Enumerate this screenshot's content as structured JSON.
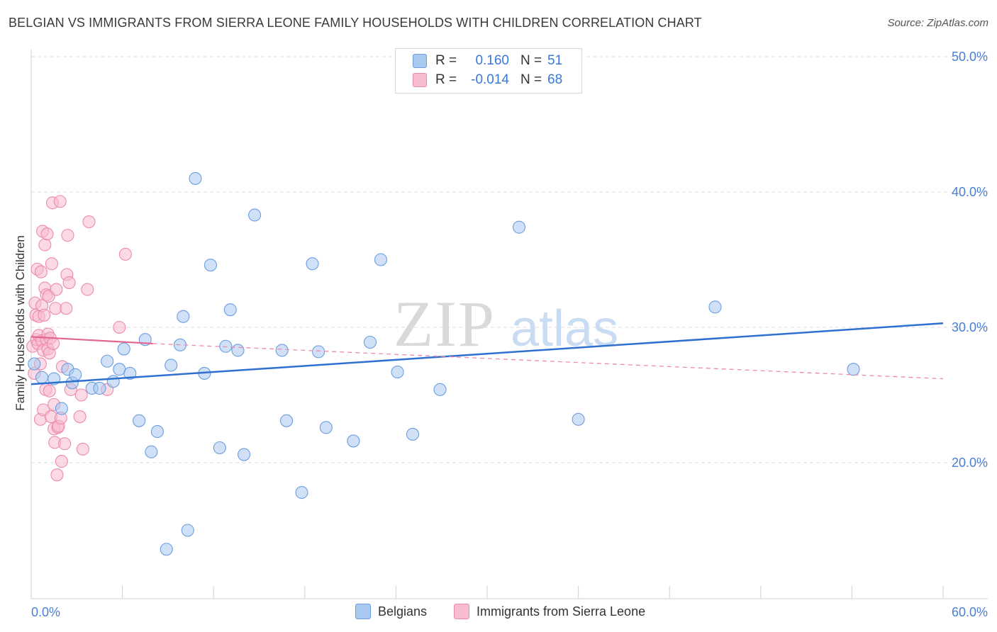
{
  "header": {
    "title": "BELGIAN VS IMMIGRANTS FROM SIERRA LEONE FAMILY HOUSEHOLDS WITH CHILDREN CORRELATION CHART",
    "source": "Source: ZipAtlas.com"
  },
  "watermark": {
    "zip": "ZIP",
    "atlas": "atlas"
  },
  "legend": {
    "rows": [
      {
        "r_label": "R =",
        "r_value": "0.160",
        "n_label": "N =",
        "n_value": "51",
        "color": "#a9c8f0",
        "border": "#6b9de0"
      },
      {
        "r_label": "R =",
        "r_value": "-0.014",
        "n_label": "N =",
        "n_value": "68",
        "color": "#f7bcd0",
        "border": "#ec8aac"
      }
    ]
  },
  "bottom_legend": {
    "series1": "Belgians",
    "series2": "Immigrants from Sierra Leone"
  },
  "chart_data": {
    "type": "scatter",
    "title": "BELGIAN VS IMMIGRANTS FROM SIERRA LEONE FAMILY HOUSEHOLDS WITH CHILDREN CORRELATION CHART",
    "xlabel": "",
    "ylabel": "Family Households with Children",
    "xlim": [
      0,
      60
    ],
    "ylim": [
      10,
      52
    ],
    "x_tick_labels": [
      "0.0%",
      "60.0%"
    ],
    "y_ticks": [
      20,
      30,
      40,
      50
    ],
    "y_tick_labels": [
      "20.0%",
      "30.0%",
      "40.0%",
      "50.0%"
    ],
    "grid": true,
    "series": [
      {
        "name": "Belgians",
        "color": "#6b9de0",
        "fill": "#a9c8f0",
        "trend": {
          "x": [
            0,
            60
          ],
          "y": [
            25.8,
            30.3
          ]
        },
        "points": [
          [
            0.2,
            27.3
          ],
          [
            0.7,
            26.3
          ],
          [
            1.5,
            26.2
          ],
          [
            2.0,
            24.0
          ],
          [
            2.7,
            25.9
          ],
          [
            2.4,
            26.9
          ],
          [
            2.9,
            26.5
          ],
          [
            4.0,
            25.5
          ],
          [
            4.5,
            25.5
          ],
          [
            5.0,
            27.5
          ],
          [
            5.4,
            26.0
          ],
          [
            5.8,
            26.9
          ],
          [
            6.1,
            28.4
          ],
          [
            6.5,
            26.6
          ],
          [
            7.1,
            23.1
          ],
          [
            7.5,
            29.1
          ],
          [
            7.9,
            20.8
          ],
          [
            8.3,
            22.3
          ],
          [
            8.9,
            13.6
          ],
          [
            9.2,
            27.2
          ],
          [
            9.8,
            28.7
          ],
          [
            10.0,
            30.8
          ],
          [
            10.3,
            15.0
          ],
          [
            10.8,
            41.0
          ],
          [
            11.4,
            26.6
          ],
          [
            11.8,
            34.6
          ],
          [
            12.4,
            21.1
          ],
          [
            12.8,
            28.6
          ],
          [
            13.1,
            31.3
          ],
          [
            13.6,
            28.3
          ],
          [
            14.0,
            20.6
          ],
          [
            14.7,
            38.3
          ],
          [
            16.5,
            28.3
          ],
          [
            16.8,
            23.1
          ],
          [
            17.8,
            17.8
          ],
          [
            18.5,
            34.7
          ],
          [
            18.9,
            28.2
          ],
          [
            19.4,
            22.6
          ],
          [
            21.2,
            21.6
          ],
          [
            22.3,
            28.9
          ],
          [
            23.0,
            35.0
          ],
          [
            24.1,
            26.7
          ],
          [
            25.1,
            22.1
          ],
          [
            26.9,
            25.4
          ],
          [
            32.1,
            37.4
          ],
          [
            36.0,
            23.2
          ],
          [
            45.0,
            31.5
          ],
          [
            54.1,
            26.9
          ]
        ]
      },
      {
        "name": "Immigrants from Sierra Leone",
        "color": "#ec8aac",
        "fill": "#f7bcd0",
        "trend": {
          "x": [
            0,
            8
          ],
          "y": [
            29.3,
            28.8
          ]
        },
        "trend_dashed": {
          "x": [
            8,
            60
          ],
          "y": [
            28.8,
            26.2
          ]
        },
        "points": [
          [
            0.1,
            28.6
          ],
          [
            0.2,
            26.6
          ],
          [
            0.25,
            31.8
          ],
          [
            0.3,
            30.9
          ],
          [
            0.35,
            29.1
          ],
          [
            0.4,
            34.3
          ],
          [
            0.45,
            28.8
          ],
          [
            0.5,
            29.4
          ],
          [
            0.5,
            30.8
          ],
          [
            0.6,
            27.3
          ],
          [
            0.6,
            23.2
          ],
          [
            0.65,
            34.1
          ],
          [
            0.7,
            29.0
          ],
          [
            0.7,
            31.6
          ],
          [
            0.75,
            37.1
          ],
          [
            0.8,
            23.9
          ],
          [
            0.8,
            28.3
          ],
          [
            0.85,
            30.9
          ],
          [
            0.9,
            32.9
          ],
          [
            0.9,
            36.1
          ],
          [
            0.95,
            25.4
          ],
          [
            1.0,
            29.1
          ],
          [
            1.0,
            32.4
          ],
          [
            1.05,
            36.9
          ],
          [
            1.1,
            28.4
          ],
          [
            1.1,
            29.5
          ],
          [
            1.15,
            32.3
          ],
          [
            1.2,
            25.3
          ],
          [
            1.2,
            28.1
          ],
          [
            1.25,
            29.2
          ],
          [
            1.3,
            23.4
          ],
          [
            1.35,
            34.7
          ],
          [
            1.4,
            39.2
          ],
          [
            1.45,
            28.8
          ],
          [
            1.5,
            24.3
          ],
          [
            1.5,
            22.5
          ],
          [
            1.55,
            21.5
          ],
          [
            1.6,
            31.4
          ],
          [
            1.65,
            32.8
          ],
          [
            1.7,
            19.1
          ],
          [
            1.75,
            22.6
          ],
          [
            1.8,
            22.7
          ],
          [
            1.9,
            39.3
          ],
          [
            1.95,
            23.3
          ],
          [
            2.0,
            20.1
          ],
          [
            2.05,
            27.1
          ],
          [
            2.2,
            21.4
          ],
          [
            2.3,
            31.4
          ],
          [
            2.35,
            33.9
          ],
          [
            2.4,
            36.8
          ],
          [
            2.5,
            33.3
          ],
          [
            2.6,
            25.4
          ],
          [
            3.2,
            23.4
          ],
          [
            3.3,
            25.0
          ],
          [
            3.4,
            21.0
          ],
          [
            3.7,
            32.8
          ],
          [
            3.8,
            37.8
          ],
          [
            5.0,
            25.4
          ],
          [
            5.8,
            30.0
          ],
          [
            6.2,
            35.4
          ]
        ]
      }
    ]
  }
}
